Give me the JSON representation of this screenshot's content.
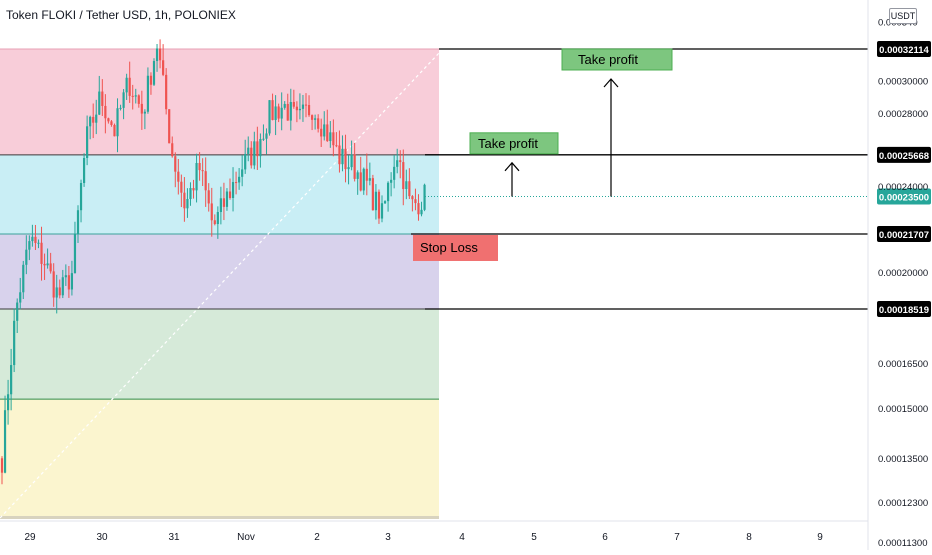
{
  "header": {
    "title": "Token FLOKI / Tether USD, 1h, POLONIEX",
    "currency_button": "USDT"
  },
  "colors": {
    "zone_top": "#f8cdd9",
    "zone_upper": "#c9eef5",
    "zone_mid": "#d8d2ec",
    "zone_lower": "#d6ead9",
    "zone_bottom": "#fbf5cf",
    "candle_up": "#26a69a",
    "candle_down": "#ef5350",
    "take_profit_fill": "#7dc67f",
    "stop_loss_fill": "#f07070",
    "level_line": "#000000",
    "current_price_line": "#26a69a"
  },
  "chart_data": {
    "type": "candlestick",
    "title": "Token FLOKI / Tether USD, 1h, POLONIEX",
    "x_tick_labels": [
      "29",
      "30",
      "31",
      "Nov",
      "2",
      "3",
      "4",
      "5",
      "6",
      "7",
      "8",
      "9"
    ],
    "y_scale": "log",
    "y_tick_labels": [
      "0.00034000",
      "0.00032114",
      "0.00030000",
      "0.00028000",
      "0.00025668",
      "0.00024000",
      "0.00023500",
      "0.00021707",
      "0.00020000",
      "0.00018519",
      "0.00016500",
      "0.00015000",
      "0.00013500",
      "0.00012300",
      "0.00011300"
    ],
    "y_ticks": [
      {
        "value": 0.00034,
        "label": "0.00034000",
        "partial": "0.000340"
      },
      {
        "value": 0.0003,
        "label": "0.00030000"
      },
      {
        "value": 0.00028,
        "label": "0.00028000"
      },
      {
        "value": 0.00024,
        "label": "0.00024000"
      },
      {
        "value": 0.0002,
        "label": "0.00020000"
      },
      {
        "value": 0.000165,
        "label": "0.00016500"
      },
      {
        "value": 0.00015,
        "label": "0.00015000"
      },
      {
        "value": 0.000135,
        "label": "0.00013500"
      },
      {
        "value": 0.000123,
        "label": "0.00012300"
      },
      {
        "value": 0.000113,
        "label": "0.00011300"
      }
    ],
    "levels": [
      {
        "value": 0.00032114,
        "label": "0.00032114"
      },
      {
        "value": 0.00025668,
        "label": "0.00025668"
      },
      {
        "value": 0.00021707,
        "label": "0.00021707"
      },
      {
        "value": 0.00018519,
        "label": "0.00018519"
      }
    ],
    "current_price": {
      "value": 0.000235,
      "label": "0.00023500"
    },
    "zones": [
      {
        "from": 0.00032114,
        "to": 0.00025668
      },
      {
        "from": 0.00025668,
        "to": 0.00021707
      },
      {
        "from": 0.00021707,
        "to": 0.00018519
      },
      {
        "from": 0.00018519,
        "to": 0.000153
      },
      {
        "from": 0.000153,
        "to": 0.000105
      }
    ],
    "annotations": {
      "take_profit_1": "Take profit",
      "take_profit_2": "Take profit",
      "stop_loss": "Stop Loss"
    },
    "price_anchors": [
      0.000135,
      0.000185,
      0.000215,
      0.000205,
      0.00019,
      0.0002,
      0.000265,
      0.00029,
      0.00027,
      0.0003,
      0.00028,
      0.000325,
      0.00026,
      0.00023,
      0.00025,
      0.00022,
      0.000235,
      0.00025,
      0.00026,
      0.00028,
      0.000285,
      0.000275,
      0.000285,
      0.00027,
      0.000255,
      0.00025,
      0.00024,
      0.000225,
      0.00026,
      0.00023,
      0.000235
    ]
  }
}
